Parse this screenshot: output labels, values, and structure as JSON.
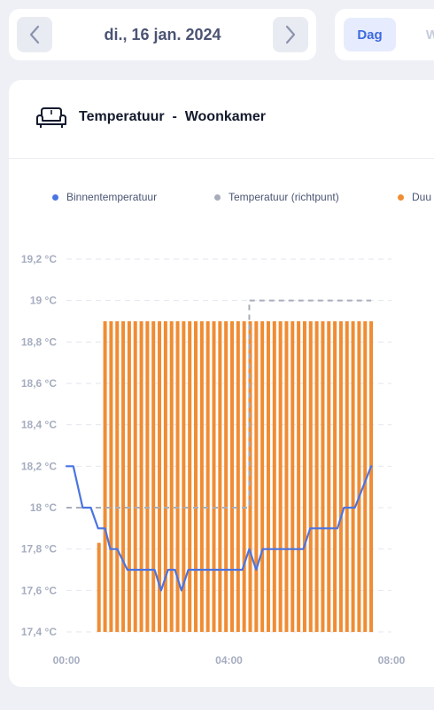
{
  "date_nav": {
    "prev_icon": "chevron-left-icon",
    "date": "di., 16 jan. 2024",
    "next_icon": "chevron-right-icon"
  },
  "range_tabs": {
    "active": "Dag",
    "next_partial": "W"
  },
  "card": {
    "icon": "sofa-icon",
    "title": "Temperatuur  -  Woonkamer"
  },
  "colors": {
    "indoor": "#4a74e2",
    "setpoint": "#a7adba",
    "duration": "#f08c33",
    "grid": "#e3e6ee",
    "tick": "#a6adbf"
  },
  "chart_data": {
    "type": "line",
    "legend": [
      {
        "label": "Binnentemperatuur",
        "color": "#4a74e2"
      },
      {
        "label": "Temperatuur (richtpunt)",
        "color": "#a7adba"
      },
      {
        "label": "Duu",
        "color": "#f08c33"
      }
    ],
    "y_ticks": [
      "19,2 °C",
      "19 °C",
      "18,8 °C",
      "18,6 °C",
      "18,4 °C",
      "18,2 °C",
      "18 °C",
      "17,8 °C",
      "17,6 °C",
      "17,4 °C"
    ],
    "ylim": [
      17.4,
      19.2
    ],
    "x_ticks": [
      {
        "label": "00:00",
        "hour": 0
      },
      {
        "label": "04:00",
        "hour": 4
      },
      {
        "label": "08:00",
        "hour": 8
      }
    ],
    "xlim": [
      0,
      8
    ],
    "series": [
      {
        "name": "Binnentemperatuur",
        "kind": "line",
        "points": [
          [
            0.0,
            18.2
          ],
          [
            0.17,
            18.2
          ],
          [
            0.4,
            18.0
          ],
          [
            0.6,
            18.0
          ],
          [
            0.78,
            17.9
          ],
          [
            0.95,
            17.9
          ],
          [
            1.08,
            17.8
          ],
          [
            1.25,
            17.8
          ],
          [
            1.5,
            17.7
          ],
          [
            1.8,
            17.7
          ],
          [
            2.17,
            17.7
          ],
          [
            2.33,
            17.6
          ],
          [
            2.5,
            17.7
          ],
          [
            2.67,
            17.7
          ],
          [
            2.83,
            17.6
          ],
          [
            3.0,
            17.7
          ],
          [
            3.33,
            17.7
          ],
          [
            3.67,
            17.7
          ],
          [
            4.0,
            17.7
          ],
          [
            4.33,
            17.7
          ],
          [
            4.5,
            17.8
          ],
          [
            4.67,
            17.7
          ],
          [
            4.83,
            17.8
          ],
          [
            5.17,
            17.8
          ],
          [
            5.5,
            17.8
          ],
          [
            5.83,
            17.8
          ],
          [
            6.0,
            17.9
          ],
          [
            6.33,
            17.9
          ],
          [
            6.67,
            17.9
          ],
          [
            6.83,
            18.0
          ],
          [
            7.1,
            18.0
          ],
          [
            7.5,
            18.2
          ]
        ]
      },
      {
        "name": "Temperatuur (richtpunt)",
        "kind": "step-dashed",
        "points": [
          [
            0.0,
            18.0
          ],
          [
            4.5,
            18.0
          ],
          [
            4.5,
            19.0
          ],
          [
            7.5,
            19.0
          ]
        ]
      },
      {
        "name": "Duu",
        "kind": "bars",
        "bar_top": 18.9,
        "bar_bottom": 17.4,
        "first_bar": {
          "hour": 0.8,
          "top": 17.83
        },
        "start_hour": 0.95,
        "end_hour": 7.5,
        "count": 45
      }
    ]
  }
}
